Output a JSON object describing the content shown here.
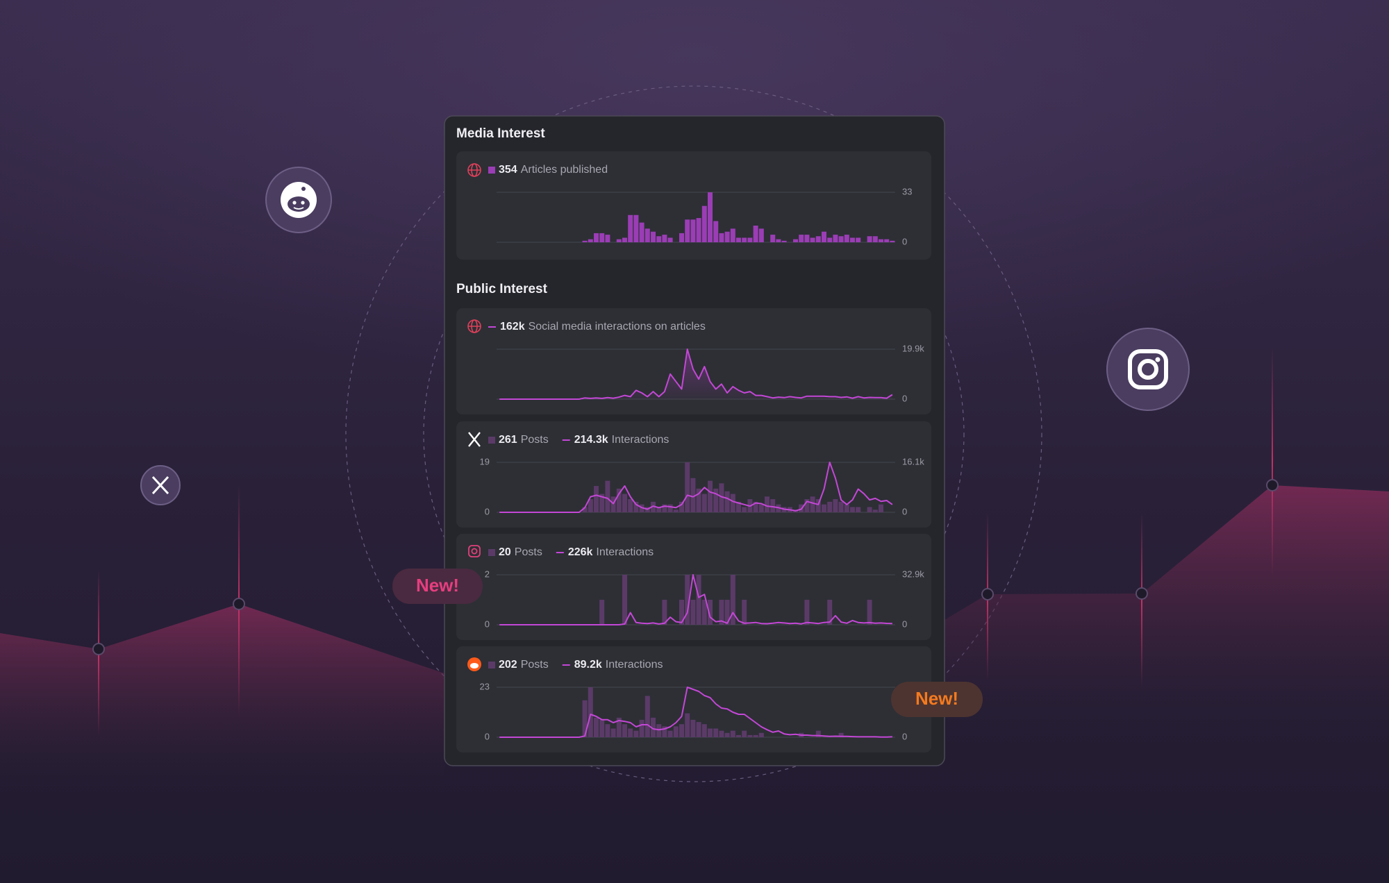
{
  "sections": [
    "Media Interest",
    "Public Interest"
  ],
  "badges": [
    "New!",
    "New!"
  ],
  "chart_data": [
    {
      "type": "bar",
      "ylim": [
        0,
        33
      ],
      "yticks": [
        0,
        33
      ],
      "grid": true,
      "series": [
        {
          "name": "Articles published",
          "total": "354",
          "color": "#9b3db5",
          "values": [
            0,
            0,
            0,
            0,
            0,
            0,
            0,
            0,
            0,
            0,
            0,
            0,
            0,
            0,
            0,
            1,
            2,
            6,
            6,
            5,
            0,
            2,
            3,
            18,
            18,
            13,
            9,
            7,
            4,
            5,
            3,
            0,
            6,
            15,
            15,
            16,
            24,
            33,
            14,
            6,
            7,
            9,
            3,
            3,
            3,
            11,
            9,
            0,
            5,
            2,
            1,
            0,
            2,
            5,
            5,
            3,
            4,
            7,
            3,
            5,
            4,
            5,
            3,
            3,
            0,
            4,
            4,
            2,
            2,
            1
          ]
        }
      ]
    },
    {
      "type": "line",
      "ylim": [
        0,
        19900
      ],
      "yticks": [
        0,
        {
          "value": 19900,
          "label": "19.9k"
        }
      ],
      "grid": true,
      "series": [
        {
          "name": "Social media interactions on articles",
          "total": "162k",
          "color": "#c447d6",
          "values": [
            0,
            0,
            0,
            0,
            0,
            0,
            0,
            0,
            0,
            0,
            0,
            0,
            0,
            0,
            0,
            500,
            300,
            500,
            300,
            600,
            400,
            800,
            1500,
            1000,
            3500,
            2500,
            1000,
            3000,
            1000,
            3000,
            10000,
            7000,
            4000,
            19900,
            12000,
            8000,
            13000,
            7000,
            4000,
            6000,
            2500,
            5000,
            3500,
            2500,
            3000,
            1500,
            1500,
            1000,
            500,
            800,
            600,
            1000,
            700,
            500,
            1200,
            1200,
            1200,
            1200,
            1000,
            1000,
            700,
            900,
            400,
            1000,
            500,
            700,
            600,
            600,
            400,
            1800
          ]
        }
      ]
    },
    {
      "type": "combo",
      "ylim": [
        0,
        19
      ],
      "yticks": [
        0,
        19
      ],
      "grid": true,
      "y2lim": [
        0,
        16100
      ],
      "y2ticks": [
        0,
        {
          "value": 16100,
          "label": "16.1k"
        }
      ],
      "series": [
        {
          "name": "Posts",
          "total": "261",
          "color": "#5b3a68",
          "values": [
            0,
            0,
            0,
            0,
            0,
            0,
            0,
            0,
            0,
            0,
            0,
            0,
            0,
            0,
            0,
            2,
            5,
            10,
            7,
            12,
            6,
            9,
            7,
            5,
            4,
            3,
            2,
            4,
            2,
            3,
            3,
            1,
            4,
            19,
            13,
            9,
            7,
            12,
            9,
            11,
            8,
            7,
            4,
            2,
            5,
            4,
            3,
            6,
            5,
            3,
            2,
            2,
            1,
            3,
            5,
            6,
            5,
            3,
            4,
            5,
            4,
            3,
            2,
            2,
            0,
            2,
            1,
            3,
            0,
            0
          ]
        },
        {
          "name": "Interactions",
          "total": "214.3k",
          "color": "#c447d6",
          "axis": "y2",
          "values": [
            0,
            0,
            0,
            0,
            0,
            0,
            0,
            0,
            0,
            0,
            0,
            0,
            0,
            0,
            0,
            1500,
            5000,
            5500,
            5000,
            4500,
            2800,
            6000,
            8500,
            5000,
            2500,
            1500,
            1000,
            2000,
            1500,
            2000,
            1800,
            1500,
            2500,
            5500,
            5000,
            6000,
            8000,
            6500,
            6000,
            5000,
            4500,
            3500,
            3000,
            2500,
            2000,
            3000,
            2800,
            2000,
            1800,
            1500,
            1000,
            800,
            500,
            1000,
            3500,
            3000,
            2500,
            7500,
            16100,
            11000,
            4000,
            2500,
            4000,
            7500,
            6000,
            4000,
            4500,
            3500,
            3800,
            2500
          ]
        }
      ]
    },
    {
      "type": "combo",
      "ylim": [
        0,
        2
      ],
      "yticks": [
        0,
        2
      ],
      "grid": true,
      "y2lim": [
        0,
        32900
      ],
      "y2ticks": [
        0,
        {
          "value": 32900,
          "label": "32.9k"
        }
      ],
      "series": [
        {
          "name": "Posts",
          "total": "20",
          "color": "#5b3a68",
          "values": [
            0,
            0,
            0,
            0,
            0,
            0,
            0,
            0,
            0,
            0,
            0,
            0,
            0,
            0,
            0,
            0,
            0,
            0,
            1,
            0,
            0,
            0,
            2,
            0,
            0,
            0,
            0,
            0,
            0,
            1,
            0,
            0,
            1,
            2,
            1,
            2,
            1,
            1,
            0,
            1,
            1,
            2,
            0,
            1,
            0,
            0,
            0,
            0,
            0,
            0,
            0,
            0,
            0,
            0,
            1,
            0,
            0,
            0,
            1,
            0,
            0,
            0,
            0,
            0,
            0,
            1,
            0,
            0,
            0,
            0
          ]
        },
        {
          "name": "Interactions",
          "total": "226k",
          "color": "#c447d6",
          "axis": "y2",
          "values": [
            0,
            0,
            0,
            0,
            0,
            0,
            0,
            0,
            0,
            0,
            0,
            0,
            0,
            0,
            0,
            0,
            0,
            0,
            0,
            0,
            0,
            0,
            500,
            8000,
            1500,
            1000,
            800,
            1200,
            500,
            1000,
            5000,
            2000,
            1500,
            8000,
            32900,
            18000,
            20000,
            5000,
            2000,
            2500,
            1000,
            8000,
            2500,
            1000,
            1200,
            1500,
            800,
            700,
            1000,
            1500,
            1200,
            800,
            1000,
            600,
            1500,
            1200,
            800,
            1500,
            1800,
            6000,
            1800,
            1000,
            2800,
            1500,
            1200,
            1400,
            1000,
            1200,
            900,
            800
          ]
        }
      ]
    },
    {
      "type": "combo",
      "ylim": [
        0,
        23
      ],
      "yticks": [
        0,
        23
      ],
      "grid": true,
      "y2lim": [
        0,
        12000
      ],
      "y2ticks": [
        0
      ],
      "series": [
        {
          "name": "Posts",
          "total": "202",
          "color": "#5b3a68",
          "values": [
            0,
            0,
            0,
            0,
            0,
            0,
            0,
            0,
            0,
            0,
            0,
            0,
            0,
            0,
            0,
            17,
            23,
            9,
            8,
            6,
            4,
            9,
            6,
            4,
            3,
            8,
            19,
            9,
            6,
            5,
            3,
            5,
            6,
            11,
            8,
            7,
            6,
            4,
            4,
            3,
            2,
            3,
            1,
            3,
            1,
            1,
            2,
            0,
            0,
            0,
            0,
            0,
            0,
            2,
            0,
            0,
            3,
            0,
            0,
            0,
            2,
            0,
            0,
            0,
            0,
            0,
            0,
            0,
            0,
            0
          ]
        },
        {
          "name": "Interactions",
          "total": "89.2k",
          "color": "#c447d6",
          "axis": "y2",
          "values": [
            0,
            0,
            0,
            0,
            0,
            0,
            0,
            0,
            0,
            0,
            0,
            0,
            0,
            0,
            0,
            300,
            5500,
            5000,
            4200,
            4200,
            3500,
            4000,
            3800,
            3500,
            2500,
            3000,
            3000,
            2000,
            1800,
            2000,
            2500,
            3500,
            5000,
            12000,
            11500,
            11000,
            10000,
            9500,
            8000,
            7000,
            6800,
            6000,
            5500,
            5500,
            4500,
            3500,
            2500,
            1800,
            1200,
            1500,
            800,
            600,
            700,
            500,
            500,
            400,
            400,
            300,
            200,
            250,
            200,
            200,
            150,
            100,
            100,
            100,
            100,
            50,
            50,
            100
          ]
        }
      ]
    }
  ]
}
